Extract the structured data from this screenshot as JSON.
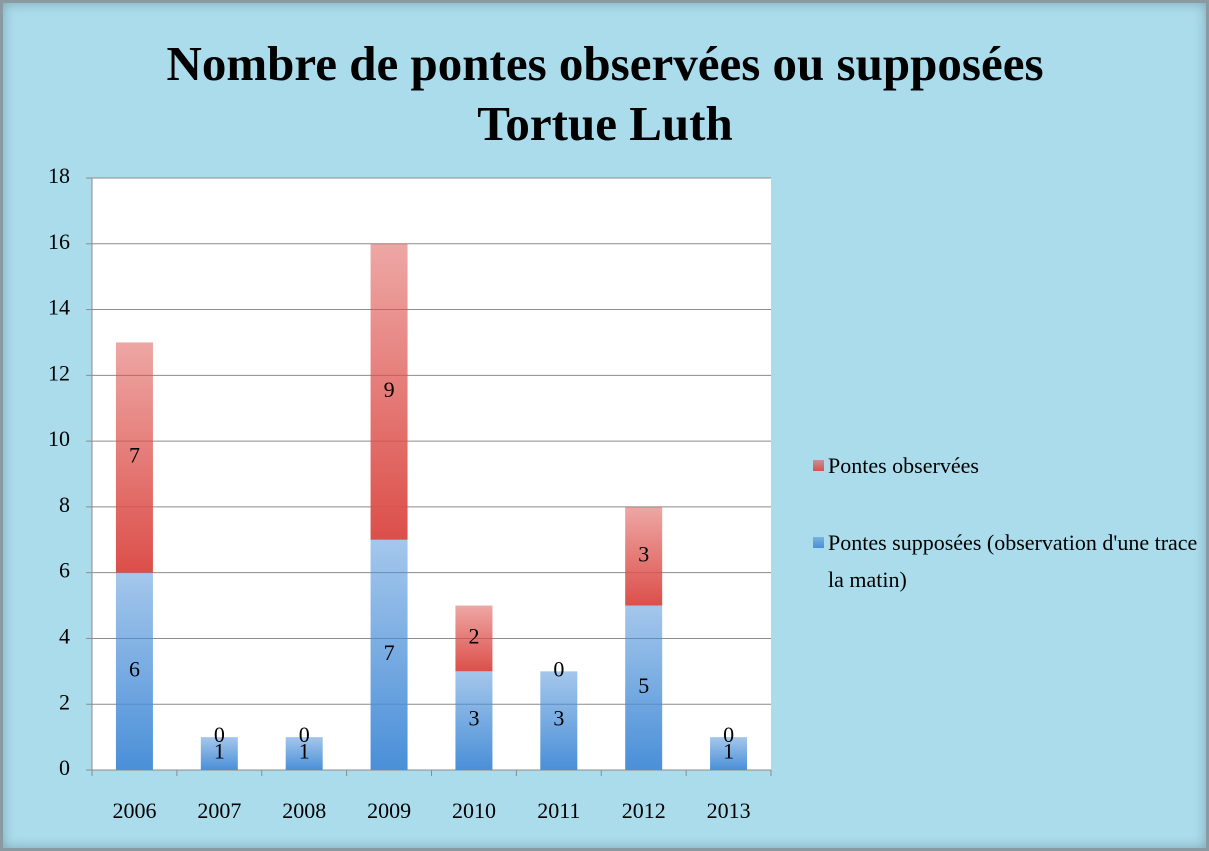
{
  "chart_data": {
    "type": "stacked_bar",
    "title": "Nombre de pontes observées ou supposées Tortue Luth",
    "categories": [
      "2006",
      "2007",
      "2008",
      "2009",
      "2010",
      "2011",
      "2012",
      "2013"
    ],
    "series": [
      {
        "name": "Pontes supposées (observation d'une trace la matin)",
        "color": "#4a8fd8",
        "values": [
          6,
          1,
          1,
          7,
          3,
          3,
          5,
          1
        ]
      },
      {
        "name": "Pontes observées",
        "color": "#dc4f4a",
        "values": [
          7,
          0,
          0,
          9,
          2,
          0,
          3,
          0
        ]
      }
    ],
    "ylim": [
      0,
      18
    ],
    "yticks": [
      0,
      2,
      4,
      6,
      8,
      10,
      12,
      14,
      16,
      18
    ],
    "grid": true,
    "legend": "right"
  }
}
